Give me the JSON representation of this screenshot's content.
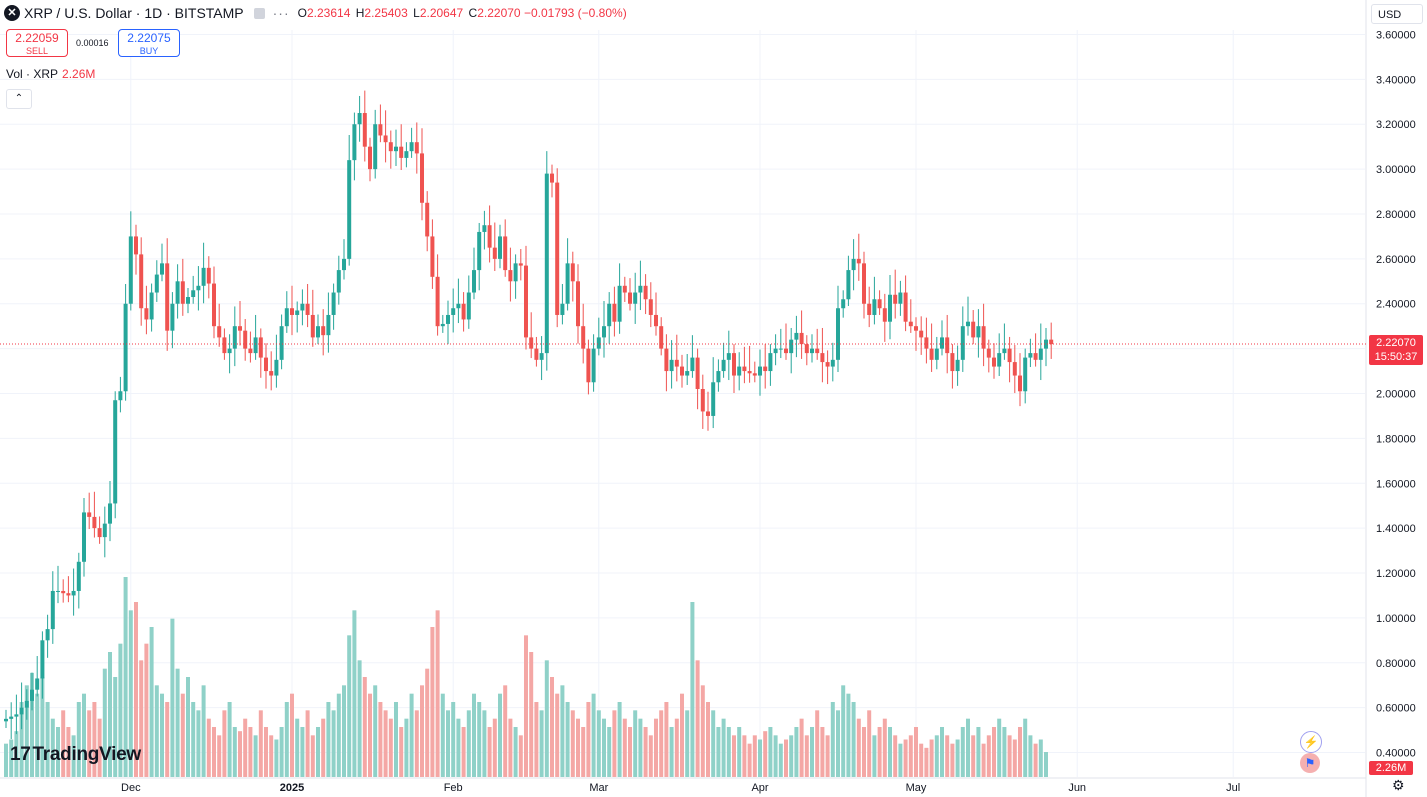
{
  "header": {
    "symbol": "XRP / U.S. Dollar · 1D · BITSTAMP",
    "logo_icon": "xrp-logo-icon",
    "dots": "···",
    "open_label": "O",
    "open": "2.23614",
    "high_label": "H",
    "high": "2.25403",
    "low_label": "L",
    "low": "2.20647",
    "close_label": "C",
    "close": "2.22070",
    "change": "−0.01793 (−0.80%)"
  },
  "trade": {
    "sell_price": "2.22059",
    "sell_label": "SELL",
    "spread": "0.00016",
    "buy_price": "2.22075",
    "buy_label": "BUY"
  },
  "volume_legend": {
    "label": "Vol · XRP",
    "value": "2.26M"
  },
  "currency": "USD",
  "last_price_label": {
    "price": "2.22070",
    "countdown": "15:50:37"
  },
  "volume_label": "2.26M",
  "brand": {
    "mark": "17",
    "name": "TradingView"
  },
  "colors": {
    "up": "#26a69a",
    "down": "#ef5350",
    "up_vol": "#8fd1c8",
    "down_vol": "#f4a7a5",
    "grid": "#f0f3fa",
    "price_line": "#f23645"
  },
  "chart_data": {
    "type": "candlestick",
    "title": "XRP / U.S. Dollar · 1D · BITSTAMP",
    "y_ticks": [
      "3.60000",
      "3.40000",
      "3.20000",
      "3.00000",
      "2.80000",
      "2.60000",
      "2.40000",
      "2.20000",
      "2.00000",
      "1.80000",
      "1.60000",
      "1.40000",
      "1.20000",
      "1.00000",
      "0.80000",
      "0.60000",
      "0.40000"
    ],
    "ylim": [
      0.38,
      3.62
    ],
    "x_ticks": [
      "Dec",
      "2025",
      "Feb",
      "Mar",
      "Apr",
      "May",
      "Jun",
      "Jul"
    ],
    "x_tick_days": [
      24,
      55,
      86,
      114,
      145,
      175,
      206,
      236
    ],
    "close_series": [
      0.55,
      0.56,
      0.57,
      0.6,
      0.63,
      0.68,
      0.73,
      0.9,
      0.95,
      1.12,
      1.12,
      1.11,
      1.1,
      1.12,
      1.25,
      1.47,
      1.45,
      1.4,
      1.36,
      1.42,
      1.51,
      1.97,
      2.01,
      2.4,
      2.7,
      2.62,
      2.38,
      2.33,
      2.45,
      2.53,
      2.58,
      2.28,
      2.4,
      2.5,
      2.4,
      2.43,
      2.46,
      2.48,
      2.56,
      2.49,
      2.3,
      2.25,
      2.18,
      2.2,
      2.3,
      2.28,
      2.2,
      2.18,
      2.25,
      2.16,
      2.1,
      2.08,
      2.15,
      2.3,
      2.38,
      2.35,
      2.37,
      2.4,
      2.35,
      2.25,
      2.3,
      2.26,
      2.35,
      2.45,
      2.55,
      2.6,
      3.04,
      3.2,
      3.25,
      3.1,
      3.0,
      3.2,
      3.15,
      3.12,
      3.08,
      3.1,
      3.05,
      3.08,
      3.12,
      3.07,
      2.85,
      2.7,
      2.52,
      2.3,
      2.31,
      2.35,
      2.38,
      2.4,
      2.33,
      2.45,
      2.55,
      2.72,
      2.75,
      2.65,
      2.6,
      2.7,
      2.55,
      2.5,
      2.58,
      2.57,
      2.25,
      2.2,
      2.15,
      2.18,
      2.98,
      2.94,
      2.35,
      2.4,
      2.58,
      2.5,
      2.3,
      2.2,
      2.05,
      2.2,
      2.25,
      2.3,
      2.4,
      2.32,
      2.48,
      2.45,
      2.4,
      2.45,
      2.48,
      2.42,
      2.35,
      2.3,
      2.2,
      2.1,
      2.15,
      2.12,
      2.08,
      2.1,
      2.16,
      2.02,
      1.92,
      1.9,
      2.05,
      2.1,
      2.15,
      2.18,
      2.08,
      2.12,
      2.1,
      2.09,
      2.08,
      2.12,
      2.1,
      2.18,
      2.2,
      2.2,
      2.18,
      2.24,
      2.27,
      2.22,
      2.18,
      2.2,
      2.18,
      2.14,
      2.12,
      2.15,
      2.38,
      2.42,
      2.55,
      2.6,
      2.58,
      2.4,
      2.35,
      2.42,
      2.38,
      2.32,
      2.44,
      2.4,
      2.45,
      2.32,
      2.3,
      2.28,
      2.25,
      2.2,
      2.15,
      2.2,
      2.25,
      2.18,
      2.1,
      2.15,
      2.3,
      2.32,
      2.25,
      2.3,
      2.2,
      2.16,
      2.12,
      2.18,
      2.2,
      2.14,
      2.08,
      2.01,
      2.16,
      2.18,
      2.15,
      2.2,
      2.24,
      2.22
    ],
    "volume_series": [
      0.08,
      0.09,
      0.11,
      0.18,
      0.22,
      0.25,
      0.2,
      0.24,
      0.18,
      0.14,
      0.12,
      0.16,
      0.12,
      0.1,
      0.18,
      0.2,
      0.16,
      0.18,
      0.14,
      0.26,
      0.3,
      0.24,
      0.32,
      0.48,
      0.4,
      0.42,
      0.28,
      0.32,
      0.36,
      0.22,
      0.2,
      0.18,
      0.38,
      0.26,
      0.2,
      0.24,
      0.18,
      0.16,
      0.22,
      0.14,
      0.12,
      0.1,
      0.16,
      0.18,
      0.12,
      0.11,
      0.14,
      0.12,
      0.1,
      0.16,
      0.12,
      0.1,
      0.09,
      0.12,
      0.18,
      0.2,
      0.14,
      0.12,
      0.16,
      0.1,
      0.12,
      0.14,
      0.18,
      0.16,
      0.2,
      0.22,
      0.34,
      0.4,
      0.28,
      0.24,
      0.2,
      0.22,
      0.18,
      0.16,
      0.14,
      0.18,
      0.12,
      0.14,
      0.2,
      0.16,
      0.22,
      0.26,
      0.36,
      0.4,
      0.2,
      0.16,
      0.18,
      0.14,
      0.12,
      0.16,
      0.2,
      0.18,
      0.16,
      0.12,
      0.14,
      0.2,
      0.22,
      0.14,
      0.12,
      0.1,
      0.34,
      0.3,
      0.18,
      0.16,
      0.28,
      0.24,
      0.2,
      0.22,
      0.18,
      0.16,
      0.14,
      0.12,
      0.18,
      0.2,
      0.16,
      0.14,
      0.12,
      0.16,
      0.18,
      0.14,
      0.12,
      0.16,
      0.14,
      0.12,
      0.1,
      0.14,
      0.16,
      0.18,
      0.12,
      0.14,
      0.2,
      0.16,
      0.42,
      0.28,
      0.22,
      0.18,
      0.16,
      0.12,
      0.14,
      0.12,
      0.1,
      0.12,
      0.1,
      0.08,
      0.1,
      0.09,
      0.11,
      0.12,
      0.1,
      0.08,
      0.09,
      0.1,
      0.12,
      0.14,
      0.1,
      0.12,
      0.16,
      0.12,
      0.1,
      0.18,
      0.16,
      0.22,
      0.2,
      0.18,
      0.14,
      0.12,
      0.16,
      0.1,
      0.12,
      0.14,
      0.12,
      0.1,
      0.08,
      0.09,
      0.1,
      0.12,
      0.08,
      0.07,
      0.09,
      0.1,
      0.12,
      0.1,
      0.08,
      0.09,
      0.12,
      0.14,
      0.1,
      0.12,
      0.08,
      0.1,
      0.12,
      0.14,
      0.12,
      0.1,
      0.09,
      0.12,
      0.14,
      0.1,
      0.08,
      0.09,
      0.06
    ]
  }
}
